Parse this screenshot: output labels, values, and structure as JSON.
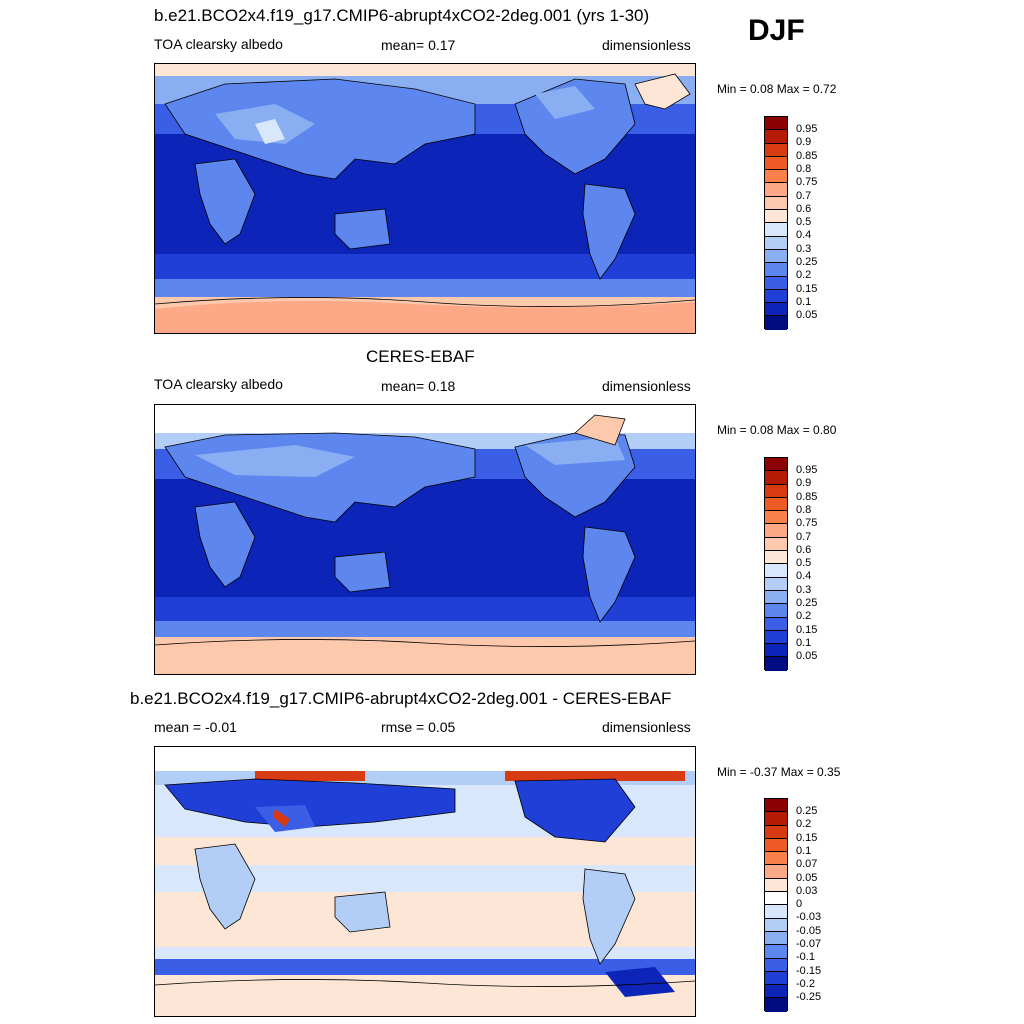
{
  "season": "DJF",
  "panels": [
    {
      "title": "b.e21.BCO2x4.f19_g17.CMIP6-abrupt4xCO2-2deg.001 (yrs 1-30)",
      "left_label": "TOA clearsky albedo",
      "center_label": "mean=   0.17",
      "right_label": "dimensionless",
      "minmax": "Min =   0.08 Max =   0.72",
      "colorbar_ticks": [
        "0.95",
        "0.9",
        "0.85",
        "0.8",
        "0.75",
        "0.7",
        "0.6",
        "0.5",
        "0.4",
        "0.3",
        "0.25",
        "0.2",
        "0.15",
        "0.1",
        "0.05"
      ]
    },
    {
      "title": "CERES-EBAF",
      "left_label": "TOA clearsky albedo",
      "center_label": "mean=   0.18",
      "right_label": "dimensionless",
      "minmax": "Min =   0.08 Max =   0.80",
      "colorbar_ticks": [
        "0.95",
        "0.9",
        "0.85",
        "0.8",
        "0.75",
        "0.7",
        "0.6",
        "0.5",
        "0.4",
        "0.3",
        "0.25",
        "0.2",
        "0.15",
        "0.1",
        "0.05"
      ]
    },
    {
      "title": "b.e21.BCO2x4.f19_g17.CMIP6-abrupt4xCO2-2deg.001 - CERES-EBAF",
      "left_label": "mean =  -0.01",
      "center_label": "rmse =   0.05",
      "right_label": "dimensionless",
      "minmax": "Min =  -0.37 Max =   0.35",
      "colorbar_ticks": [
        "0.25",
        "0.2",
        "0.15",
        "0.1",
        "0.07",
        "0.05",
        "0.03",
        "0",
        "-0.03",
        "-0.05",
        "-0.07",
        "-0.1",
        "-0.15",
        "-0.2",
        "-0.25"
      ]
    }
  ],
  "colors": {
    "abs_scale": [
      "#8b0000",
      "#b51a04",
      "#d83a12",
      "#ee5a26",
      "#f8804a",
      "#fda987",
      "#fdc9ad",
      "#fde6d6",
      "#d8e7fb",
      "#b2cdf6",
      "#8aaef2",
      "#5d86ee",
      "#3a5fe6",
      "#1f3fd6",
      "#0d24b8",
      "#000d80"
    ],
    "diff_scale": [
      "#8b0000",
      "#b51a04",
      "#d83a12",
      "#ee5a26",
      "#f8804a",
      "#fda987",
      "#fde6d6",
      "#ffffff",
      "#d8e7fb",
      "#b2cdf6",
      "#8aaef2",
      "#5d86ee",
      "#3a5fe6",
      "#1f3fd6",
      "#0d24b8",
      "#000d80"
    ]
  }
}
